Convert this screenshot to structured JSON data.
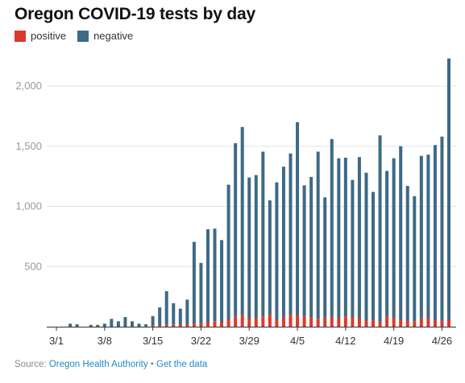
{
  "title": "Oregon COVID-19 tests by day",
  "legend": [
    {
      "label": "positive",
      "color": "#d93a2b"
    },
    {
      "label": "negative",
      "color": "#3d6a86"
    }
  ],
  "source": {
    "prefix": "Source: ",
    "org": "Oregon Health Authority",
    "separator": " • ",
    "link": "Get the data"
  },
  "chart_data": {
    "type": "bar",
    "stacked": true,
    "title": "Oregon COVID-19 tests by day",
    "xlabel": "",
    "ylabel": "",
    "ylim": [
      0,
      2200
    ],
    "yticks": [
      500,
      1000,
      1500,
      2000
    ],
    "ytick_labels": [
      "500",
      "1,000",
      "1,500",
      "2,000"
    ],
    "grid": true,
    "legend_position": "top-left",
    "x_tick_labels": [
      "3/1",
      "3/8",
      "3/15",
      "3/22",
      "3/29",
      "4/5",
      "4/12",
      "4/19",
      "4/26"
    ],
    "x_tick_indices": [
      0,
      7,
      14,
      21,
      28,
      35,
      42,
      49,
      56
    ],
    "categories": [
      "3/1",
      "3/2",
      "3/3",
      "3/4",
      "3/5",
      "3/6",
      "3/7",
      "3/8",
      "3/9",
      "3/10",
      "3/11",
      "3/12",
      "3/13",
      "3/14",
      "3/15",
      "3/16",
      "3/17",
      "3/18",
      "3/19",
      "3/20",
      "3/21",
      "3/22",
      "3/23",
      "3/24",
      "3/25",
      "3/26",
      "3/27",
      "3/28",
      "3/29",
      "3/30",
      "3/31",
      "4/1",
      "4/2",
      "4/3",
      "4/4",
      "4/5",
      "4/6",
      "4/7",
      "4/8",
      "4/9",
      "4/10",
      "4/11",
      "4/12",
      "4/13",
      "4/14",
      "4/15",
      "4/16",
      "4/17",
      "4/18",
      "4/19",
      "4/20",
      "4/21",
      "4/22",
      "4/23",
      "4/24",
      "4/25",
      "4/26",
      "4/27"
    ],
    "series": [
      {
        "name": "positive",
        "color": "#d93a2b",
        "values": [
          0,
          0,
          0,
          0,
          0,
          0,
          0,
          0,
          0,
          0,
          0,
          0,
          0,
          5,
          8,
          10,
          15,
          15,
          20,
          20,
          25,
          30,
          40,
          45,
          40,
          60,
          85,
          100,
          70,
          70,
          85,
          100,
          60,
          80,
          100,
          90,
          85,
          75,
          65,
          75,
          80,
          70,
          85,
          80,
          70,
          50,
          60,
          40,
          85,
          70,
          60,
          50,
          45,
          70,
          70,
          60,
          50,
          60
        ]
      },
      {
        "name": "negative",
        "color": "#3d6a86",
        "values": [
          0,
          0,
          25,
          20,
          0,
          15,
          15,
          25,
          65,
          45,
          80,
          45,
          25,
          15,
          80,
          150,
          280,
          180,
          130,
          205,
          680,
          500,
          770,
          770,
          680,
          1120,
          1440,
          1560,
          1170,
          1190,
          1370,
          950,
          1140,
          1250,
          1340,
          1610,
          1090,
          1170,
          1390,
          1000,
          1480,
          1330,
          1320,
          1140,
          1340,
          1230,
          1060,
          1550,
          1210,
          1330,
          1440,
          1120,
          1040,
          1350,
          1360,
          1450,
          1530,
          2170
        ]
      }
    ]
  }
}
